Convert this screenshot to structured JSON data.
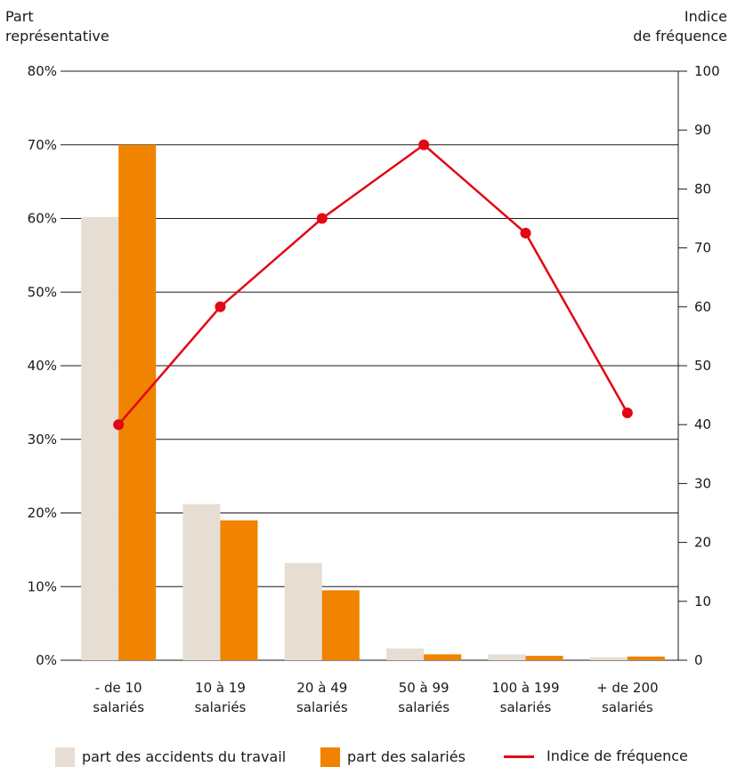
{
  "colors": {
    "accidents": "#e6ddd3",
    "salaries": "#f08300",
    "indice": "#e30613",
    "grid": "#1a1a1a",
    "text": "#1a1a1a"
  },
  "chart_data": {
    "type": "bar",
    "left_axis_title": [
      "Part",
      "représentative"
    ],
    "right_axis_title": [
      "Indice",
      "de fréquence"
    ],
    "categories": [
      [
        "- de 10",
        "salariés"
      ],
      [
        "10 à 19",
        "salariés"
      ],
      [
        "20 à 49",
        "salariés"
      ],
      [
        "50 à 99",
        "salariés"
      ],
      [
        "100 à 199",
        "salariés"
      ],
      [
        "+ de 200",
        "salariés"
      ]
    ],
    "left_ticks": [
      "0%",
      "10%",
      "20%",
      "30%",
      "40%",
      "50%",
      "60%",
      "70%",
      "80%"
    ],
    "right_ticks": [
      "0",
      "10",
      "20",
      "30",
      "40",
      "50",
      "60",
      "70",
      "80",
      "90",
      "100"
    ],
    "ylim_left": [
      0,
      80
    ],
    "ylim_right": [
      0,
      100
    ],
    "grid": true,
    "legend_position": "bottom",
    "series": [
      {
        "name": "part des accidents du travail",
        "type": "bar",
        "axis": "left",
        "values": [
          60.2,
          21.2,
          13.2,
          1.6,
          0.8,
          0.4
        ]
      },
      {
        "name": "part des salariés",
        "type": "bar",
        "axis": "left",
        "values": [
          70.0,
          19.0,
          9.5,
          0.8,
          0.6,
          0.5
        ]
      },
      {
        "name": "Indice de fréquence",
        "type": "line",
        "axis": "right",
        "values": [
          40.0,
          60.0,
          75.0,
          87.5,
          72.5,
          42.0
        ]
      }
    ]
  }
}
